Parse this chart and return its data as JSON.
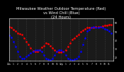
{
  "title": "Milwaukee Weather Outdoor Temperature (Red)\nvs Wind Chill (Blue)\n(24 Hours)",
  "title_fontsize": 3.8,
  "bg_color": "#000000",
  "plot_bg_color": "#1a1a1a",
  "grid_color": "#555555",
  "ylim": [
    15,
    65
  ],
  "xlim": [
    0,
    48
  ],
  "red_y": [
    55,
    54,
    52,
    50,
    48,
    47,
    46,
    42,
    38,
    34,
    30,
    27,
    26,
    26,
    28,
    31,
    33,
    36,
    35,
    33,
    30,
    28,
    26,
    25,
    25,
    26,
    28,
    32,
    36,
    40,
    42,
    44,
    46,
    49,
    51,
    53,
    54,
    54,
    54,
    54,
    55,
    55,
    55,
    56,
    57,
    57,
    58,
    58
  ],
  "blue_y": [
    45,
    43,
    38,
    32,
    26,
    20,
    18,
    18,
    20,
    22,
    24,
    26,
    28,
    28,
    28,
    26,
    22,
    18,
    17,
    16,
    18,
    22,
    26,
    28,
    28,
    26,
    22,
    18,
    17,
    16,
    17,
    18,
    20,
    26,
    34,
    42,
    50,
    52,
    54,
    55,
    54,
    54,
    55,
    54,
    53,
    52,
    50,
    48
  ],
  "grid_x_positions": [
    0,
    4,
    8,
    12,
    16,
    20,
    24,
    28,
    32,
    36,
    40,
    44,
    48
  ],
  "xtick_positions": [
    0,
    2,
    4,
    6,
    8,
    10,
    12,
    14,
    16,
    18,
    20,
    22,
    24,
    26,
    28,
    30,
    32,
    34,
    36,
    38,
    40,
    42,
    44,
    46,
    48
  ],
  "xtick_labels": [
    "12a",
    "1",
    "2",
    "3",
    "4",
    "5",
    "6",
    "7",
    "8",
    "9",
    "10",
    "11",
    "12p",
    "1",
    "2",
    "3",
    "4",
    "5",
    "6",
    "7",
    "8",
    "9",
    "10",
    "11",
    ""
  ],
  "ytick_positions": [
    20,
    30,
    40,
    50,
    60
  ],
  "ytick_labels": [
    "20",
    "30",
    "40",
    "50",
    "60"
  ]
}
